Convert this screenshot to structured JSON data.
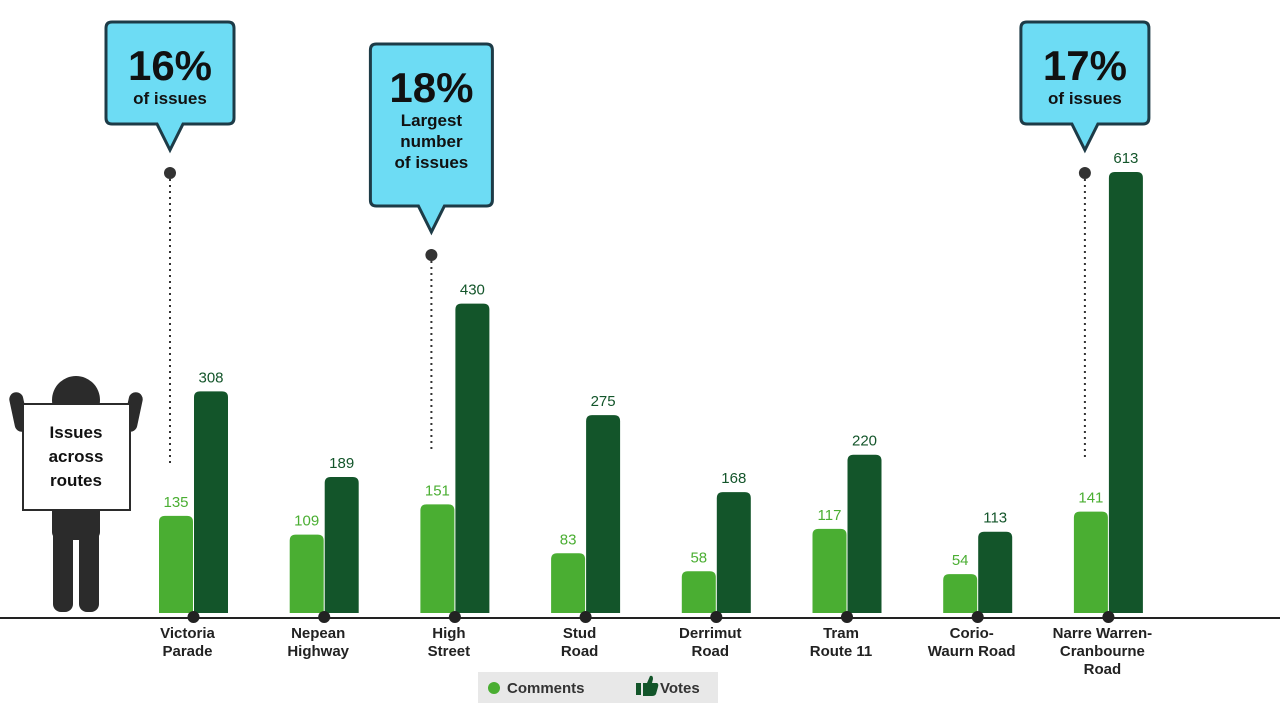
{
  "colors": {
    "comments": "#4aae32",
    "votes": "#13552a",
    "callout_fill": "#6ddcf4",
    "callout_stroke": "#1d3b47",
    "figure": "#2b2b2b",
    "axis": "#222222"
  },
  "sign": {
    "lines": [
      "Issues",
      "across",
      "routes"
    ]
  },
  "legend": {
    "comments_label": "Comments",
    "votes_label": "Votes",
    "comments_icon": "dot-icon",
    "votes_icon": "thumbs-up-icon"
  },
  "callouts": [
    {
      "category_index": 0,
      "big": "16%",
      "lines": [
        "of issues"
      ]
    },
    {
      "category_index": 2,
      "big": "18%",
      "lines": [
        "Largest",
        "number",
        "of issues"
      ]
    },
    {
      "category_index": 7,
      "big": "17%",
      "lines": [
        "of issues"
      ]
    }
  ],
  "chart_data": {
    "type": "bar",
    "categories": [
      [
        "Victoria",
        "Parade"
      ],
      [
        "Nepean",
        "Highway"
      ],
      [
        "High",
        "Street"
      ],
      [
        "Stud",
        "Road"
      ],
      [
        "Derrimut",
        "Road"
      ],
      [
        "Tram",
        "Route 11"
      ],
      [
        "Corio-",
        "Waurn Road"
      ],
      [
        "Narre Warren-",
        "Cranbourne",
        "Road"
      ]
    ],
    "series": [
      {
        "name": "Comments",
        "values": [
          135,
          109,
          151,
          83,
          58,
          117,
          54,
          141
        ]
      },
      {
        "name": "Votes",
        "values": [
          308,
          189,
          430,
          275,
          168,
          220,
          113,
          613
        ]
      }
    ],
    "ylim": [
      0,
      613
    ],
    "grid": false,
    "legend_position": "bottom-center"
  }
}
